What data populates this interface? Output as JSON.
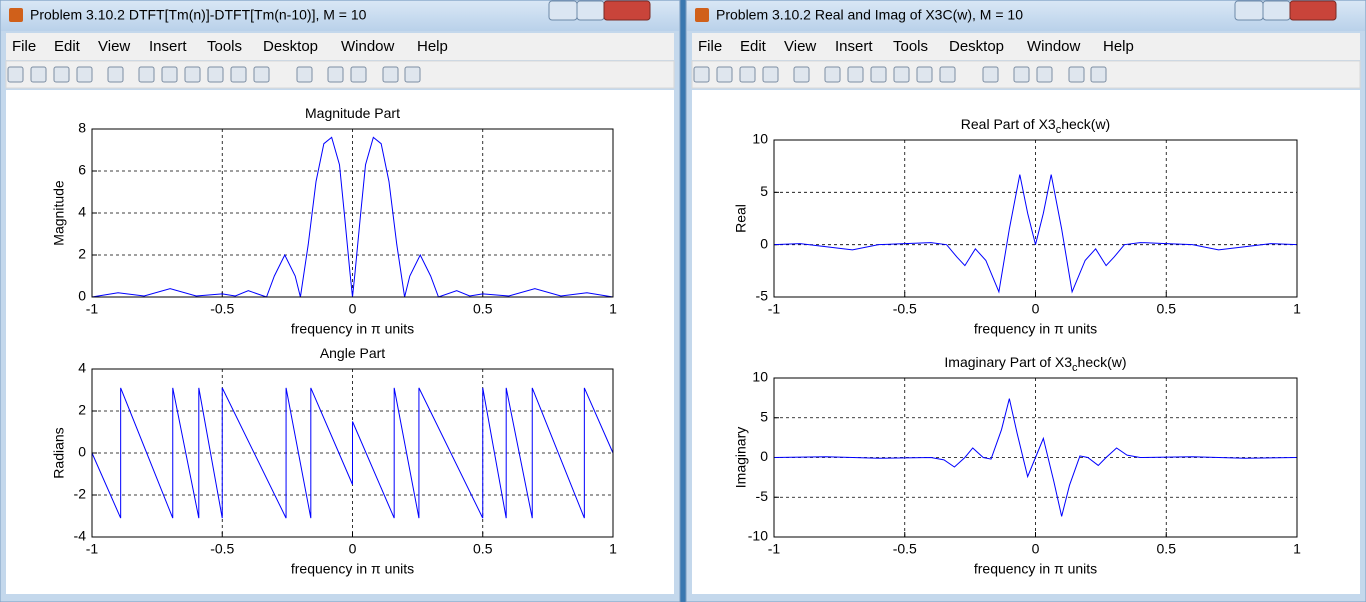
{
  "windows": [
    {
      "title": "Problem 3.10.2 DTFT[Tm(n)]-DTFT[Tm(n-10)], M = 10",
      "menu": [
        "File",
        "Edit",
        "View",
        "Insert",
        "Tools",
        "Desktop",
        "Window",
        "Help"
      ],
      "charts": [
        {
          "type": "line",
          "title": [
            "Magnitude Part"
          ],
          "xlabel": "frequency in π units",
          "ylabel": "Magnitude",
          "x": [
            -1,
            -0.9,
            -0.8,
            -0.7,
            -0.6,
            -0.5,
            -0.45,
            -0.4,
            -0.33,
            -0.3,
            -0.26,
            -0.22,
            -0.2,
            -0.17,
            -0.14,
            -0.11,
            -0.08,
            -0.05,
            -0.03,
            -0.01,
            0,
            0.01,
            0.03,
            0.05,
            0.08,
            0.11,
            0.14,
            0.17,
            0.2,
            0.22,
            0.26,
            0.3,
            0.33,
            0.4,
            0.45,
            0.5,
            0.6,
            0.7,
            0.8,
            0.9,
            1
          ],
          "series": [
            {
              "color": "#0000ff",
              "values": [
                0,
                0.2,
                0.05,
                0.4,
                0.05,
                0.15,
                0.05,
                0.3,
                0,
                1.0,
                2.0,
                1.0,
                0,
                2.5,
                5.5,
                7.3,
                7.6,
                6.3,
                3.8,
                1.2,
                0,
                1.2,
                3.8,
                6.3,
                7.6,
                7.3,
                5.5,
                2.5,
                0,
                1.0,
                2.0,
                1.0,
                0,
                0.3,
                0.05,
                0.15,
                0.05,
                0.4,
                0.05,
                0.2,
                0
              ]
            }
          ],
          "xlim": [
            -1,
            1
          ],
          "ylim": [
            0,
            8
          ],
          "xticks": [
            -1,
            -0.5,
            0,
            0.5,
            1
          ],
          "yticks": [
            0,
            2,
            4,
            6,
            8
          ],
          "grid": true
        },
        {
          "type": "line",
          "title": [
            "Angle Part"
          ],
          "xlabel": "frequency in π units",
          "ylabel": "Radians",
          "x": [
            -1,
            -0.89,
            -0.89,
            -0.69,
            -0.69,
            -0.59,
            -0.59,
            -0.5,
            -0.5,
            -0.255,
            -0.255,
            -0.16,
            -0.16,
            0,
            0,
            0.16,
            0.16,
            0.255,
            0.255,
            0.5,
            0.5,
            0.59,
            0.59,
            0.69,
            0.69,
            0.89,
            0.89,
            1
          ],
          "series": [
            {
              "color": "#0000ff",
              "values": [
                0,
                -3.1,
                3.1,
                -3.1,
                3.1,
                -3.1,
                3.1,
                -3.1,
                3.1,
                -3.1,
                3.1,
                -3.1,
                3.1,
                -1.5,
                1.5,
                -3.1,
                3.1,
                -3.1,
                3.1,
                -3.1,
                3.1,
                -3.1,
                3.1,
                -3.1,
                3.1,
                -3.1,
                3.1,
                0
              ]
            }
          ],
          "xlim": [
            -1,
            1
          ],
          "ylim": [
            -4,
            4
          ],
          "xticks": [
            -1,
            -0.5,
            0,
            0.5,
            1
          ],
          "yticks": [
            -4,
            -2,
            0,
            2,
            4
          ],
          "grid": true
        }
      ]
    },
    {
      "title": "Problem 3.10.2 Real and Imag of X3C(w), M = 10",
      "menu": [
        "File",
        "Edit",
        "View",
        "Insert",
        "Tools",
        "Desktop",
        "Window",
        "Help"
      ],
      "charts": [
        {
          "type": "line",
          "title": [
            "Real Part of X3",
            "c",
            "heck(w)"
          ],
          "xlabel": "frequency in π units",
          "ylabel": "Real",
          "x": [
            -1,
            -0.9,
            -0.8,
            -0.7,
            -0.6,
            -0.5,
            -0.4,
            -0.34,
            -0.3,
            -0.27,
            -0.23,
            -0.19,
            -0.14,
            -0.1,
            -0.06,
            -0.03,
            0,
            0.03,
            0.06,
            0.1,
            0.14,
            0.19,
            0.23,
            0.27,
            0.3,
            0.34,
            0.4,
            0.5,
            0.6,
            0.7,
            0.8,
            0.9,
            1
          ],
          "series": [
            {
              "color": "#0000ff",
              "values": [
                0,
                0.1,
                -0.2,
                -0.5,
                0,
                0.1,
                0.2,
                0,
                -1.2,
                -2,
                -0.4,
                -1.5,
                -4.5,
                1.5,
                6.7,
                3,
                0,
                3,
                6.7,
                1.5,
                -4.5,
                -1.5,
                -0.4,
                -2,
                -1.2,
                0,
                0.2,
                0.1,
                0,
                -0.5,
                -0.2,
                0.1,
                0
              ]
            }
          ],
          "xlim": [
            -1,
            1
          ],
          "ylim": [
            -5,
            10
          ],
          "xticks": [
            -1,
            -0.5,
            0,
            0.5,
            1
          ],
          "yticks": [
            -5,
            0,
            5,
            10
          ],
          "grid": true
        },
        {
          "type": "line",
          "title": [
            "Imaginary Part of X3",
            "c",
            "heck(w)"
          ],
          "xlabel": "frequency in π units",
          "ylabel": "Imaginary",
          "x": [
            -1,
            -0.8,
            -0.6,
            -0.4,
            -0.35,
            -0.31,
            -0.27,
            -0.24,
            -0.2,
            -0.17,
            -0.13,
            -0.1,
            -0.07,
            -0.03,
            0,
            0.03,
            0.07,
            0.1,
            0.13,
            0.17,
            0.2,
            0.24,
            0.27,
            0.31,
            0.35,
            0.4,
            0.6,
            0.8,
            1
          ],
          "series": [
            {
              "color": "#0000ff",
              "values": [
                0,
                0.1,
                -0.1,
                0,
                -0.3,
                -1.2,
                0,
                1.2,
                0,
                -0.2,
                3.5,
                7.4,
                3,
                -2.4,
                0,
                2.4,
                -3,
                -7.4,
                -3.5,
                0.2,
                0,
                -1,
                0,
                1.2,
                0.3,
                0,
                0.1,
                -0.1,
                0
              ]
            }
          ],
          "xlim": [
            -1,
            1
          ],
          "ylim": [
            -10,
            10
          ],
          "xticks": [
            -1,
            -0.5,
            0,
            0.5,
            1
          ],
          "yticks": [
            -10,
            -5,
            0,
            5,
            10
          ],
          "grid": true
        }
      ]
    }
  ]
}
